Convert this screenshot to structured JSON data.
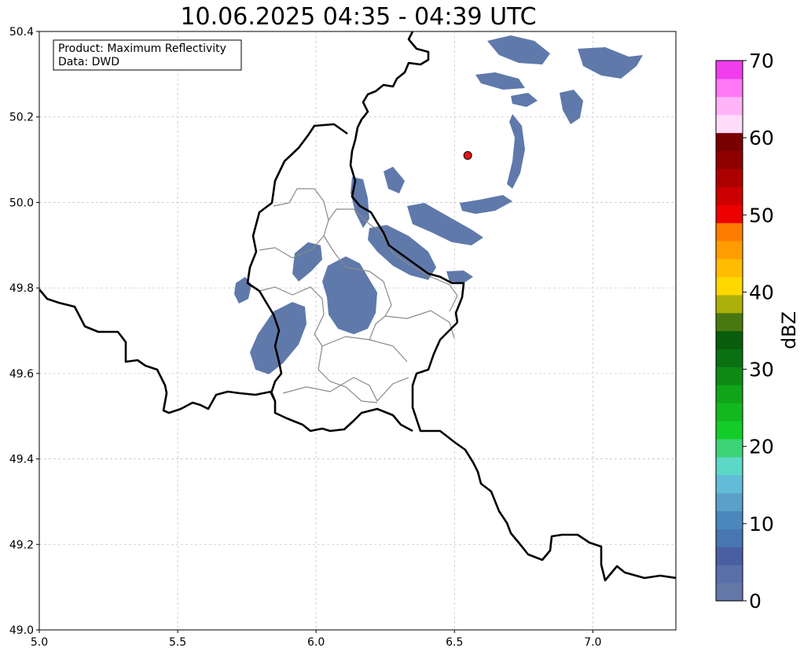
{
  "title": "10.06.2025 04:35 - 04:39 UTC",
  "info_box": {
    "line1": "Product: Maximum Reflectivity",
    "line2": "Data: DWD"
  },
  "map": {
    "lon_range": [
      5.0,
      7.3
    ],
    "lat_range": [
      49.0,
      50.4
    ],
    "x_ticks": [
      "5.0",
      "5.5",
      "6.0",
      "6.5",
      "7.0"
    ],
    "y_ticks": [
      "49.0",
      "49.2",
      "49.4",
      "49.6",
      "49.8",
      "50.0",
      "50.2",
      "50.4"
    ],
    "grid": true,
    "radar_site": {
      "lon": 6.548,
      "lat": 50.11,
      "color": "#e8141c"
    }
  },
  "colorbar": {
    "label": "dBZ",
    "range": [
      0,
      70
    ],
    "tick_labels": [
      "0",
      "10",
      "20",
      "30",
      "40",
      "50",
      "60",
      "70"
    ],
    "colors": [
      "#6478a8",
      "#5a6ea8",
      "#4a5fa2",
      "#4876b0",
      "#4a88bc",
      "#5aa0c8",
      "#62bcd8",
      "#5cd8c6",
      "#3cd476",
      "#14cc28",
      "#12b81e",
      "#10a418",
      "#0e8a14",
      "#0a7012",
      "#085c0c",
      "#4a7810",
      "#aab008",
      "#ffd800",
      "#ffbc00",
      "#ff9c00",
      "#ff7c00",
      "#ec0000",
      "#cc0000",
      "#ac0000",
      "#8e0000",
      "#780000",
      "#ffdcfa",
      "#ffb4f8",
      "#ff78f6",
      "#f03ced"
    ]
  }
}
